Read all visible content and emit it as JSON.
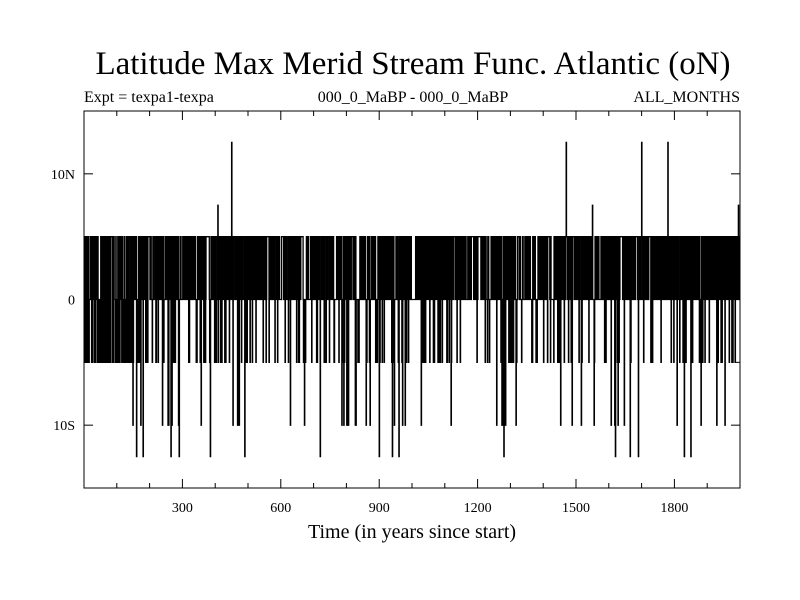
{
  "chart_data": {
    "type": "line",
    "title": "Latitude Max Merid Stream Func. Atlantic (oN)",
    "subtitle_left": "Expt = texpa1-texpa",
    "subtitle_center": "000_0_MaBP - 000_0_MaBP",
    "subtitle_right": "ALL_MONTHS",
    "xlabel": "Time (in years since start)",
    "ylabel": "",
    "xlim": [
      0,
      2000
    ],
    "ylim": [
      -15,
      15
    ],
    "x_ticks": [
      300,
      600,
      900,
      1200,
      1500,
      1800
    ],
    "y_ticks": [
      {
        "value": 10,
        "label": "10N"
      },
      {
        "value": 0,
        "label": "0"
      },
      {
        "value": -10,
        "label": "10S"
      }
    ],
    "levels": [
      12.5,
      7.5,
      5,
      0,
      -5,
      -10,
      -12.5
    ],
    "spikes": [
      {
        "x": 408,
        "y": 7.5
      },
      {
        "x": 450,
        "y": 12.5
      },
      {
        "x": 1470,
        "y": 12.5
      },
      {
        "x": 1550,
        "y": 7.5
      },
      {
        "x": 1700,
        "y": 12.5
      },
      {
        "x": 1780,
        "y": 12.5
      },
      {
        "x": 1995,
        "y": 7.5
      },
      {
        "x": 160,
        "y": -12.5
      },
      {
        "x": 180,
        "y": -12.5
      },
      {
        "x": 265,
        "y": -12.5
      },
      {
        "x": 290,
        "y": -12.5
      },
      {
        "x": 385,
        "y": -12.5
      },
      {
        "x": 490,
        "y": -12.5
      },
      {
        "x": 720,
        "y": -12.5
      },
      {
        "x": 900,
        "y": -12.5
      },
      {
        "x": 940,
        "y": -12.5
      },
      {
        "x": 960,
        "y": -12.5
      },
      {
        "x": 1280,
        "y": -12.5
      },
      {
        "x": 1620,
        "y": -12.5
      },
      {
        "x": 1665,
        "y": -12.5
      },
      {
        "x": 1690,
        "y": -12.5
      },
      {
        "x": 1830,
        "y": -12.5
      },
      {
        "x": 1850,
        "y": -12.5
      }
    ]
  }
}
